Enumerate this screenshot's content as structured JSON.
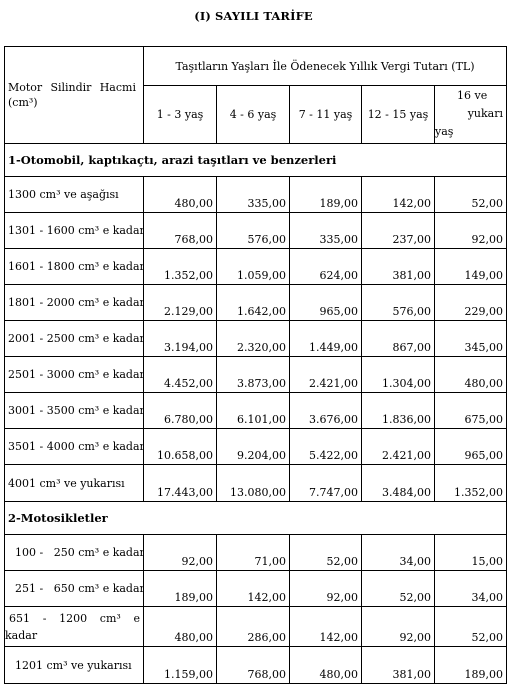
{
  "title": "(I) SAYILI TARİFE",
  "header": {
    "motor_label_line1_a": "Motor",
    "motor_label_line1_b": "Silindir",
    "motor_label_line1_c": "Hacmi",
    "motor_label_line2": "(cm³)",
    "group_label": "Taşıtların Yaşları İle Ödenecek Yıllık Vergi Tutarı (TL)",
    "ages": [
      "1 - 3 yaş",
      "4 - 6 yaş",
      "7 - 11 yaş",
      "12 - 15 yaş"
    ],
    "age5_line1": "16 ve",
    "age5_line2": "yukarı",
    "age5_line3": "yaş"
  },
  "sections": [
    {
      "title": "1-Otomobil, kaptıkaçtı, arazi taşıtları ve benzerleri",
      "rows": [
        {
          "label": "1300 cm³ ve aşağısı",
          "values": [
            "480,00",
            "335,00",
            "189,00",
            "142,00",
            "52,00"
          ]
        },
        {
          "label": "1301 - 1600 cm³ e kadar",
          "values": [
            "768,00",
            "576,00",
            "335,00",
            "237,00",
            "92,00"
          ]
        },
        {
          "label": "1601 - 1800 cm³ e kadar",
          "values": [
            "1.352,00",
            "1.059,00",
            "624,00",
            "381,00",
            "149,00"
          ]
        },
        {
          "label": "1801 - 2000 cm³ e kadar",
          "values": [
            "2.129,00",
            "1.642,00",
            "965,00",
            "576,00",
            "229,00"
          ]
        },
        {
          "label": "2001 - 2500 cm³ e kadar",
          "values": [
            "3.194,00",
            "2.320,00",
            "1.449,00",
            "867,00",
            "345,00"
          ]
        },
        {
          "label": "2501 - 3000 cm³ e kadar",
          "values": [
            "4.452,00",
            "3.873,00",
            "2.421,00",
            "1.304,00",
            "480,00"
          ]
        },
        {
          "label": "3001 - 3500 cm³ e kadar",
          "values": [
            "6.780,00",
            "6.101,00",
            "3.676,00",
            "1.836,00",
            "675,00"
          ]
        },
        {
          "label": "3501 - 4000 cm³ e kadar",
          "values": [
            "10.658,00",
            "9.204,00",
            "5.422,00",
            "2.421,00",
            "965,00"
          ]
        },
        {
          "label": "4001 cm³ ve yukarısı",
          "values": [
            "17.443,00",
            "13.080,00",
            "7.747,00",
            "3.484,00",
            "1.352,00"
          ]
        }
      ]
    },
    {
      "title": "2-Motosikletler",
      "rows": [
        {
          "label": "100 -   250 cm³ e kadar",
          "values": [
            "92,00",
            "71,00",
            "52,00",
            "34,00",
            "15,00"
          ]
        },
        {
          "label": "251 -   650 cm³ e kadar",
          "values": [
            "189,00",
            "142,00",
            "92,00",
            "52,00",
            "34,00"
          ]
        },
        {
          "label_a": "651",
          "label_b": "-",
          "label_c": "1200",
          "label_d": "cm³",
          "label_e": "e",
          "label_f": "kadar",
          "values": [
            "480,00",
            "286,00",
            "142,00",
            "92,00",
            "52,00"
          ]
        },
        {
          "label": "1201 cm³ ve yukarısı",
          "values": [
            "1.159,00",
            "768,00",
            "480,00",
            "381,00",
            "189,00"
          ]
        }
      ]
    }
  ]
}
